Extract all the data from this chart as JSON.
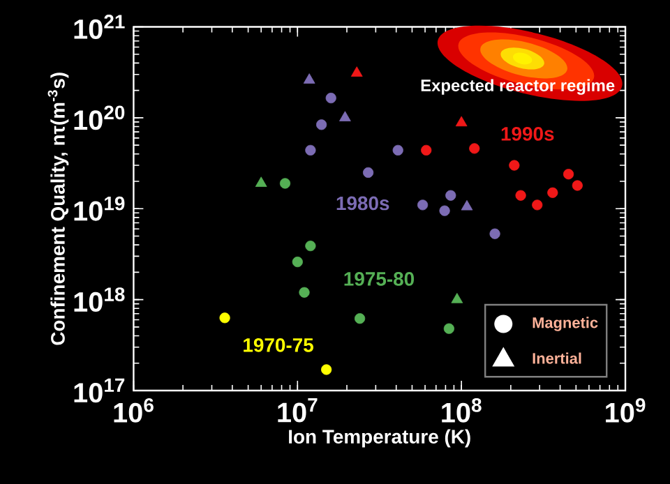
{
  "chart_data": {
    "type": "scatter",
    "xlabel": "Ion Temperature (K)",
    "ylabel": "Confinement Quality, nτ(m$^{-3}$s)",
    "log": "xy",
    "xlim": [
      1000000,
      1000000000
    ],
    "ylim": [
      1e+17,
      1e+21
    ],
    "xticks": [
      {
        "value": 1000000,
        "label": "10$^{6}$"
      },
      {
        "value": 10000000,
        "label": "10$^{7}$"
      },
      {
        "value": 100000000,
        "label": "10$^{8}$"
      },
      {
        "value": 1000000000,
        "label": "10$^{9}$"
      }
    ],
    "yticks": [
      {
        "value": 1e+17,
        "label": "10$^{17}$"
      },
      {
        "value": 1e+18,
        "label": "10$^{18}$"
      },
      {
        "value": 1e+19,
        "label": "10$^{19}$"
      },
      {
        "value": 1e+20,
        "label": "10$^{20}$"
      },
      {
        "value": 1e+21,
        "label": "10$^{21}$"
      }
    ],
    "series": [
      {
        "name": "1970-75",
        "marker": "circle",
        "color": "#ffff00",
        "x": [
          3600000,
          15000000
        ],
        "values": [
          6.3e+17,
          1.7e+17
        ]
      },
      {
        "name": "1975-80",
        "marker": "circle",
        "color": "#55b055",
        "x": [
          8400000,
          12000000,
          10000000,
          11000000,
          24000000,
          84000000
        ],
        "values": [
          1.9e+19,
          3.9e+18,
          2.6e+18,
          1.2e+18,
          6.2e+17,
          4.8e+17
        ]
      },
      {
        "name": "1980s",
        "marker": "circle",
        "color": "#7c6cb4",
        "x": [
          16000000,
          14000000,
          12000000,
          27000000,
          41000000,
          58000000,
          86000000,
          79000000,
          160000000
        ],
        "values": [
          1.65e+20,
          8.4e+19,
          4.4e+19,
          2.5e+19,
          4.4e+19,
          1.1e+19,
          1.4e+19,
          9.5e+18,
          5.3e+18
        ]
      },
      {
        "name": "1990s",
        "marker": "circle",
        "color": "#f01818",
        "x": [
          61000000,
          120000000,
          210000000,
          230000000,
          290000000,
          360000000,
          450000000,
          510000000
        ],
        "values": [
          4.4e+19,
          4.6e+19,
          3e+19,
          1.4e+19,
          1.1e+19,
          1.5e+19,
          2.4e+19,
          1.8e+19
        ]
      },
      {
        "marker": "triangle",
        "color": "#55b055",
        "x": [
          6000000,
          94000000
        ],
        "values": [
          1.9e+19,
          1e+18
        ]
      },
      {
        "marker": "triangle",
        "color": "#7c6cb4",
        "x": [
          11800000,
          19500000,
          108000000
        ],
        "values": [
          2.6e+20,
          1e+20,
          1.05e+19
        ]
      },
      {
        "marker": "triangle",
        "color": "#f01818",
        "x": [
          23000000,
          100000000
        ],
        "values": [
          3.1e+20,
          8.8e+19
        ]
      }
    ],
    "annotations": [
      "Magnetic",
      "Inertial",
      "Expected reactor regime"
    ]
  }
}
